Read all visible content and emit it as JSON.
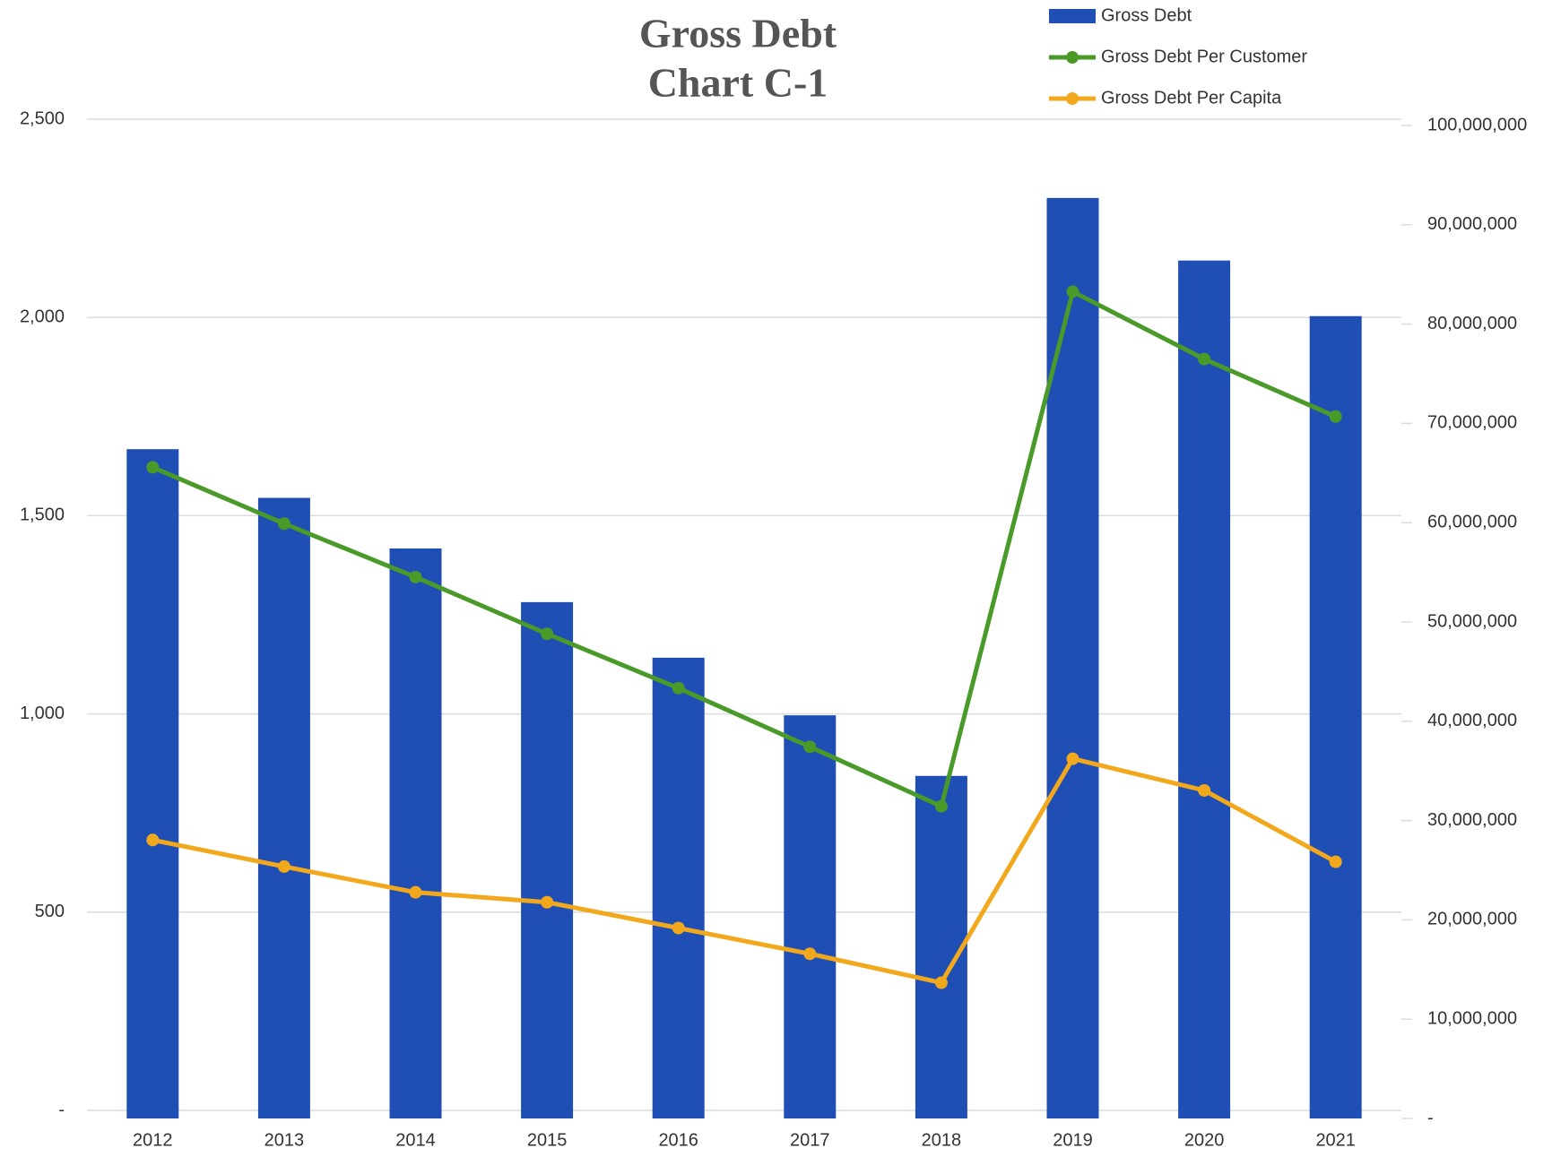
{
  "chart_data": {
    "type": "bar_line",
    "title": "Gross Debt",
    "subtitle": "Chart C-1",
    "categories": [
      "2012",
      "2013",
      "2014",
      "2015",
      "2016",
      "2017",
      "2018",
      "2019",
      "2020",
      "2021"
    ],
    "series": [
      {
        "name": "Gross Debt",
        "type": "bar",
        "axis": "y2",
        "color": "#1f4fb4",
        "values": [
          67400000,
          62500000,
          57400000,
          52000000,
          46400000,
          40600000,
          34500000,
          92700000,
          86400000,
          80800000
        ]
      },
      {
        "name": "Gross Debt Per Customer",
        "type": "line",
        "axis": "y",
        "color": "#4a9a2a",
        "values": [
          1622,
          1480,
          1345,
          1202,
          1065,
          917,
          767,
          2065,
          1895,
          1750
        ]
      },
      {
        "name": "Gross Debt Per Capita",
        "type": "line",
        "axis": "y",
        "color": "#f2a81c",
        "values": [
          682,
          615,
          550,
          525,
          460,
          395,
          322,
          887,
          807,
          627
        ]
      }
    ],
    "ylim": [
      0,
      2500
    ],
    "yticks": [
      {
        "value": 0,
        "label": "-"
      },
      500,
      {
        "value": 1000,
        "label": "1,000"
      },
      {
        "value": 1500,
        "label": "1,500"
      },
      {
        "value": 2000,
        "label": "2,000"
      },
      {
        "value": 2500,
        "label": "2,500"
      }
    ],
    "y2lim": [
      0,
      100000000
    ],
    "y2ticks": [
      {
        "value": 0,
        "label": "-"
      },
      {
        "value": 10000000,
        "label": "10,000,000"
      },
      {
        "value": 20000000,
        "label": "20,000,000"
      },
      {
        "value": 30000000,
        "label": "30,000,000"
      },
      {
        "value": 40000000,
        "label": "40,000,000"
      },
      {
        "value": 50000000,
        "label": "50,000,000"
      },
      {
        "value": 60000000,
        "label": "60,000,000"
      },
      {
        "value": 70000000,
        "label": "70,000,000"
      },
      {
        "value": 80000000,
        "label": "80,000,000"
      },
      {
        "value": 90000000,
        "label": "90,000,000"
      },
      {
        "value": 100000000,
        "label": "100,000,000"
      }
    ],
    "grid": true,
    "legend": "top-right"
  }
}
